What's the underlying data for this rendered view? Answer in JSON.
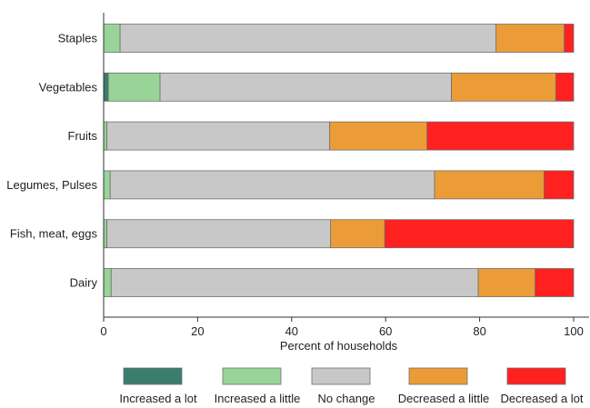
{
  "chart_data": {
    "type": "bar",
    "orientation": "horizontal",
    "stacked": true,
    "categories": [
      "Staples",
      "Vegetables",
      "Fruits",
      "Legumes, Pulses",
      "Fish, meat, eggs",
      "Dairy"
    ],
    "series": [
      {
        "name": "Increased a lot",
        "color": "#3a7d6e",
        "values": [
          0,
          1,
          0,
          0,
          0,
          0
        ]
      },
      {
        "name": "Increased a little",
        "color": "#98d498",
        "values": [
          3.5,
          11,
          0.7,
          1.4,
          0.7,
          1.6
        ]
      },
      {
        "name": "No change",
        "color": "#c8c8c8",
        "values": [
          80,
          62,
          47.4,
          69,
          47.6,
          78.1
        ]
      },
      {
        "name": "Decreased a little",
        "color": "#ec9c36",
        "values": [
          14.5,
          22.2,
          20.7,
          23.3,
          11.5,
          12.1
        ]
      },
      {
        "name": "Decreased a lot",
        "color": "#ff2020",
        "values": [
          2,
          3.8,
          31.2,
          6.3,
          40.2,
          8.2
        ]
      }
    ],
    "xlabel": "Percent of households",
    "ylabel": "",
    "xlim": [
      0,
      100
    ],
    "xticks": [
      "0",
      "20",
      "40",
      "60",
      "80",
      "100"
    ],
    "legend_position": "bottom"
  }
}
